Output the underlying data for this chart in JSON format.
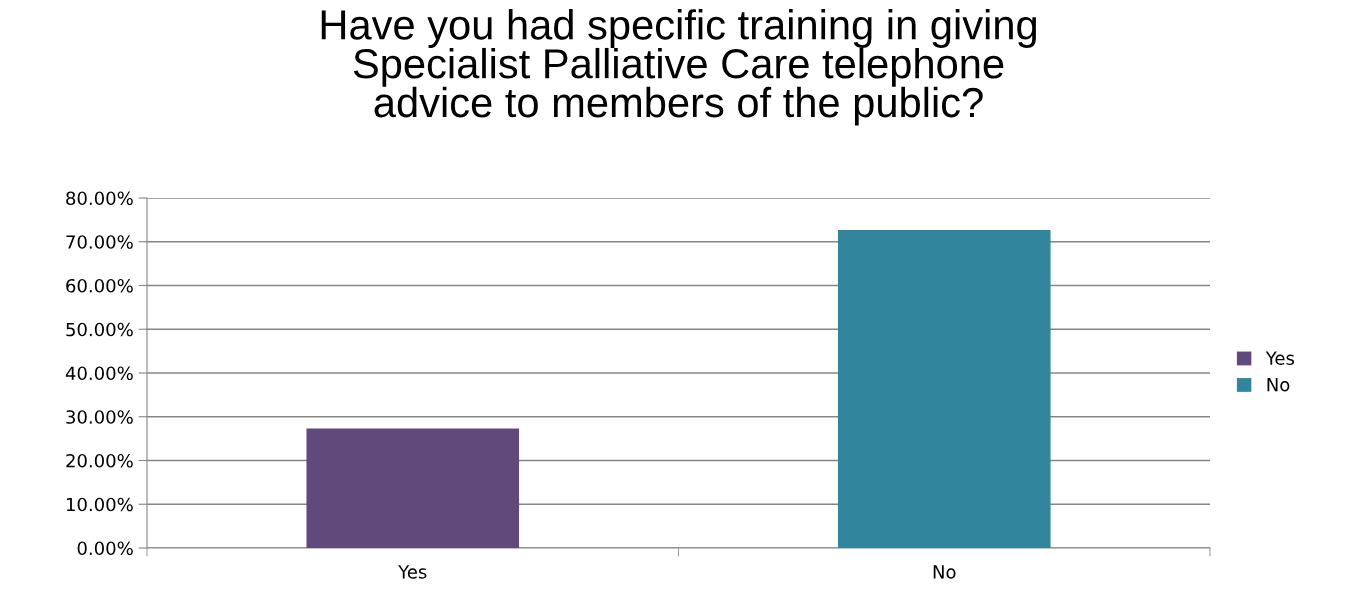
{
  "chart_data": {
    "type": "bar",
    "title": "Have you had specific training in giving\nSpecialist Palliative Care telephone\nadvice to members of the public?",
    "categories": [
      "Yes",
      "No"
    ],
    "series": [
      {
        "name": "Yes",
        "color": "#604a7b",
        "values": [
          27.3,
          null
        ]
      },
      {
        "name": "No",
        "color": "#31859c",
        "values": [
          null,
          72.7
        ]
      }
    ],
    "ylim": [
      0,
      80
    ],
    "yticks": [
      {
        "value": 0,
        "label": "0.00%"
      },
      {
        "value": 10,
        "label": "10.00%"
      },
      {
        "value": 20,
        "label": "20.00%"
      },
      {
        "value": 30,
        "label": "30.00%"
      },
      {
        "value": 40,
        "label": "40.00%"
      },
      {
        "value": 50,
        "label": "50.00%"
      },
      {
        "value": 60,
        "label": "60.00%"
      },
      {
        "value": 70,
        "label": "70.00%"
      },
      {
        "value": 80,
        "label": "80.00%"
      }
    ],
    "grid": "y",
    "legend": "right"
  }
}
